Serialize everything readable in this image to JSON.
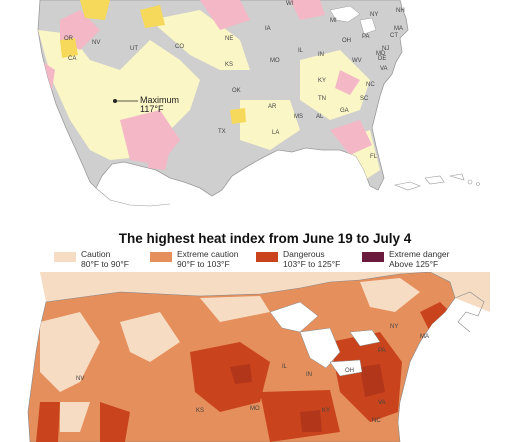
{
  "top_map": {
    "state_labels": [
      "WI",
      "MI",
      "NY",
      "NH",
      "MA",
      "CT",
      "NJ",
      "DE",
      "MD",
      "OR",
      "NV",
      "CA",
      "UT",
      "CO",
      "KS",
      "NE",
      "IA",
      "IL",
      "IN",
      "OH",
      "PA",
      "MO",
      "KY",
      "WV",
      "VA",
      "OK",
      "AR",
      "TN",
      "NC",
      "SC",
      "GA",
      "AL",
      "MS",
      "LA",
      "TX",
      "FL"
    ],
    "annotation": {
      "line1": "Maximum",
      "line2": "117°F"
    }
  },
  "bottom_map": {
    "state_labels": [
      "NV",
      "IL",
      "IN",
      "OH",
      "PA",
      "NY",
      "MA",
      "KS",
      "MO",
      "KY",
      "VA",
      "NC"
    ]
  },
  "title": "The highest heat index from June 19 to July 4",
  "legend": [
    {
      "label": "Caution",
      "range": "80°F to 90°F",
      "color": "#f7dcc4"
    },
    {
      "label": "Extreme caution",
      "range": "90°F to 103°F",
      "color": "#e58f5c"
    },
    {
      "label": "Dangerous",
      "range": "103°F to 125°F",
      "color": "#c9441c"
    },
    {
      "label": "Extreme danger",
      "range": "Above 125°F",
      "color": "#6a1a3a"
    }
  ],
  "colors": {
    "top_land": "#cfcfcf",
    "top_warm": "#fbf6c6",
    "top_pink": "#f3b7c6",
    "top_yellow": "#f6d95a",
    "bottom_base": "#e58f5c",
    "bottom_light": "#f7dcc4",
    "bottom_dark": "#c9441c",
    "bottom_darker": "#b2361a"
  }
}
